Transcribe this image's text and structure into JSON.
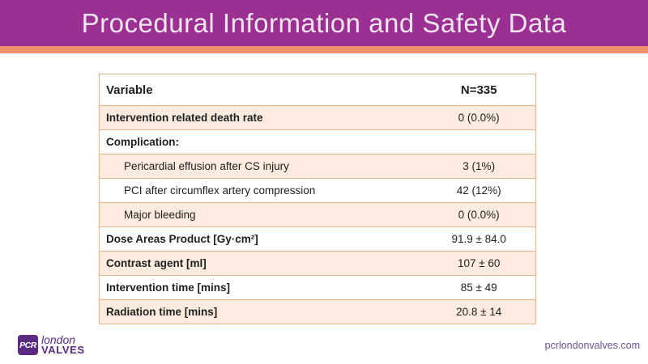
{
  "header": {
    "title": "Procedural Information and Safety Data"
  },
  "table": {
    "columns": [
      "Variable",
      "N=335"
    ],
    "rows": [
      {
        "label": "Intervention related death rate",
        "value": "0 (0.0%)",
        "bold": true,
        "indent": false,
        "shaded": true
      },
      {
        "label": "Complication:",
        "value": "",
        "bold": true,
        "indent": false,
        "shaded": false
      },
      {
        "label": "Pericardial effusion after CS injury",
        "value": "3 (1%)",
        "bold": false,
        "indent": true,
        "shaded": true
      },
      {
        "label": "PCI after circumflex artery compression",
        "value": "42 (12%)",
        "bold": false,
        "indent": true,
        "shaded": false
      },
      {
        "label": "Major bleeding",
        "value": "0 (0.0%)",
        "bold": false,
        "indent": true,
        "shaded": true
      },
      {
        "label": "Dose Areas Product [Gy·cm²]",
        "value": "91.9 ± 84.0",
        "bold": true,
        "indent": false,
        "shaded": false
      },
      {
        "label": "Contrast agent [ml]",
        "value": "107 ± 60",
        "bold": true,
        "indent": false,
        "shaded": true
      },
      {
        "label": "Intervention time [mins]",
        "value": "85 ± 49",
        "bold": true,
        "indent": false,
        "shaded": false
      },
      {
        "label": "Radiation time [mins]",
        "value": "20.8 ± 14",
        "bold": true,
        "indent": false,
        "shaded": true
      }
    ]
  },
  "footer": {
    "logo": {
      "box": "PCR",
      "line1": "london",
      "line2": "VALVES"
    },
    "website": "pcrlondonvalves.com"
  },
  "theme": {
    "header_purple": "#9A3092",
    "accent_orange": "#F0916C",
    "table_border": "#E9B587",
    "shaded_row_bg": "#FCEBDE",
    "title_text": "#F2E4EF",
    "body_text": "#1F1F1F",
    "logo_purple": "#5B2B81",
    "website_text": "#6F5499"
  }
}
